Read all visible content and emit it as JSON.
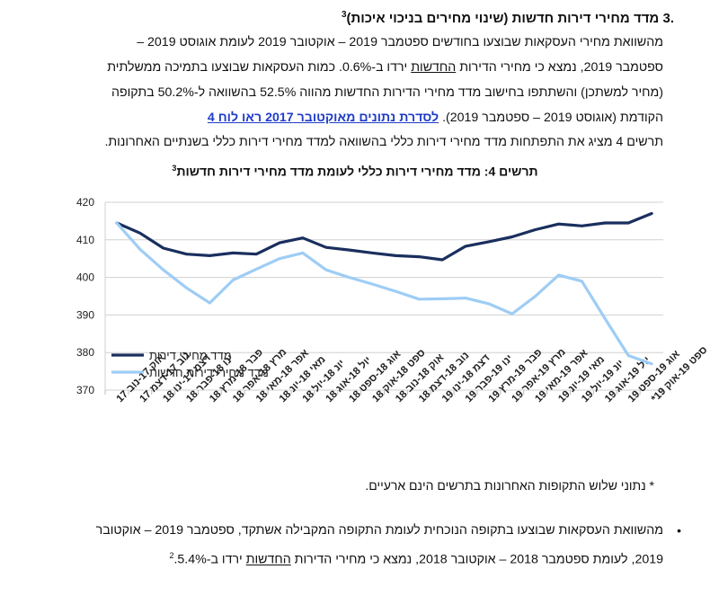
{
  "section": {
    "number": ".3",
    "title": "מדד מחירי דירות חדשות (שינוי מחירים בניכוי איכות)",
    "footnote": "3"
  },
  "paragraph": {
    "line1": "מהשוואת מחירי העסקאות שבוצעו בחודשים ספטמבר 2019 – אוקטובר 2019 לעומת אוגוסט 2019 –",
    "line2a": "ספטמבר 2019, נמצא כי מחירי הדירות ",
    "line2_underlined": "החדשות",
    "line2b": " ירדו ב-0.6%. כמות העסקאות שבוצעו בתמיכה ממשלתית",
    "line3": "(מחיר למשתכן) והשתתפו בחישוב מדד מחירי הדירות החדשות מהווה 52.5% בהשוואה ל-50.2% בתקופה",
    "line4": "הקודמת (אוגוסט 2019 – ספטמבר 2019). ",
    "link": "לסדרת נתונים מאוקטובר 2017 ראו לוח 4",
    "line5": "תרשים 4 מציג את התפתחות מדד מחירי דירות כללי בהשוואה למדד מחירי דירות כללי בשנתיים האחרונות."
  },
  "chart_data": {
    "type": "line",
    "title": "תרשים 4: מדד מחירי דירות כללי לעומת מדד מחירי דירות חדשות",
    "title_footnote": "3",
    "categories": [
      "אוק 17-נוב 17",
      "נוב 17-דצמ 17",
      "דצמ 17-ינו 18",
      "ינו 18-פבר 18",
      "פבר 18-מרץ 18",
      "מרץ 18-אפר 18",
      "אפר 18-מאי 18",
      "מאי 18-יונ 18",
      "יונ 18-יול 18",
      "יול 18-אוג 18",
      "אוג 18-ספט 18",
      "ספט 18-אוק 18",
      "אוק 18-נוב 18",
      "נוב 18-דצמ 18",
      "דצמ 18-ינו 19",
      "ינו 19-פבר 19",
      "פבר 19-מרץ 19",
      "מרץ 19-אפר 19",
      "אפר 19-מאי 19",
      "מאי 19-יונ 19",
      "יונ 19-יול 19",
      "יול 19-אוג 19",
      "אוג 19-ספט 19",
      "ספט 19-אוק 19*"
    ],
    "series": [
      {
        "name": "מדד מחירי דירות",
        "color": "#1a2f5e",
        "values": [
          414.5,
          411.8,
          407.8,
          406.2,
          405.8,
          406.5,
          406.2,
          409.2,
          410.5,
          408.0,
          407.3,
          406.5,
          405.8,
          405.5,
          404.7,
          408.3,
          409.5,
          410.8,
          412.7,
          414.2,
          413.7,
          414.5,
          414.5,
          417.0
        ]
      },
      {
        "name": "מדד מחירי דירות חדשות",
        "color": "#9ecdf5",
        "values": [
          414.5,
          407.5,
          402.0,
          397.2,
          393.2,
          399.3,
          402.2,
          405.0,
          406.5,
          402.0,
          400.0,
          398.2,
          396.3,
          394.2,
          394.3,
          394.5,
          393.0,
          390.3,
          395.0,
          400.6,
          399.0,
          389.0,
          379.2,
          377.0
        ]
      }
    ],
    "ylim": [
      370,
      420
    ],
    "yticks": [
      370,
      380,
      390,
      400,
      410,
      420
    ],
    "legend_position": "bottom-left",
    "grid": true
  },
  "note": "* נתוני שלוש התקופות האחרונות בתרשים הינם ארעיים.",
  "bullet": {
    "line1": "מהשוואת העסקאות שבוצעו בתקופה הנוכחית לעומת התקופה המקבילה אשתקד, ספטמבר 2019 – אוקטובר",
    "line2a": "2019, לעומת ספטמבר 2018 – אוקטובר 2018, נמצא כי מחירי הדירות ",
    "line2_underlined": "החדשות",
    "line2b": " ירדו ב-5.4%.",
    "footnote": "2"
  }
}
